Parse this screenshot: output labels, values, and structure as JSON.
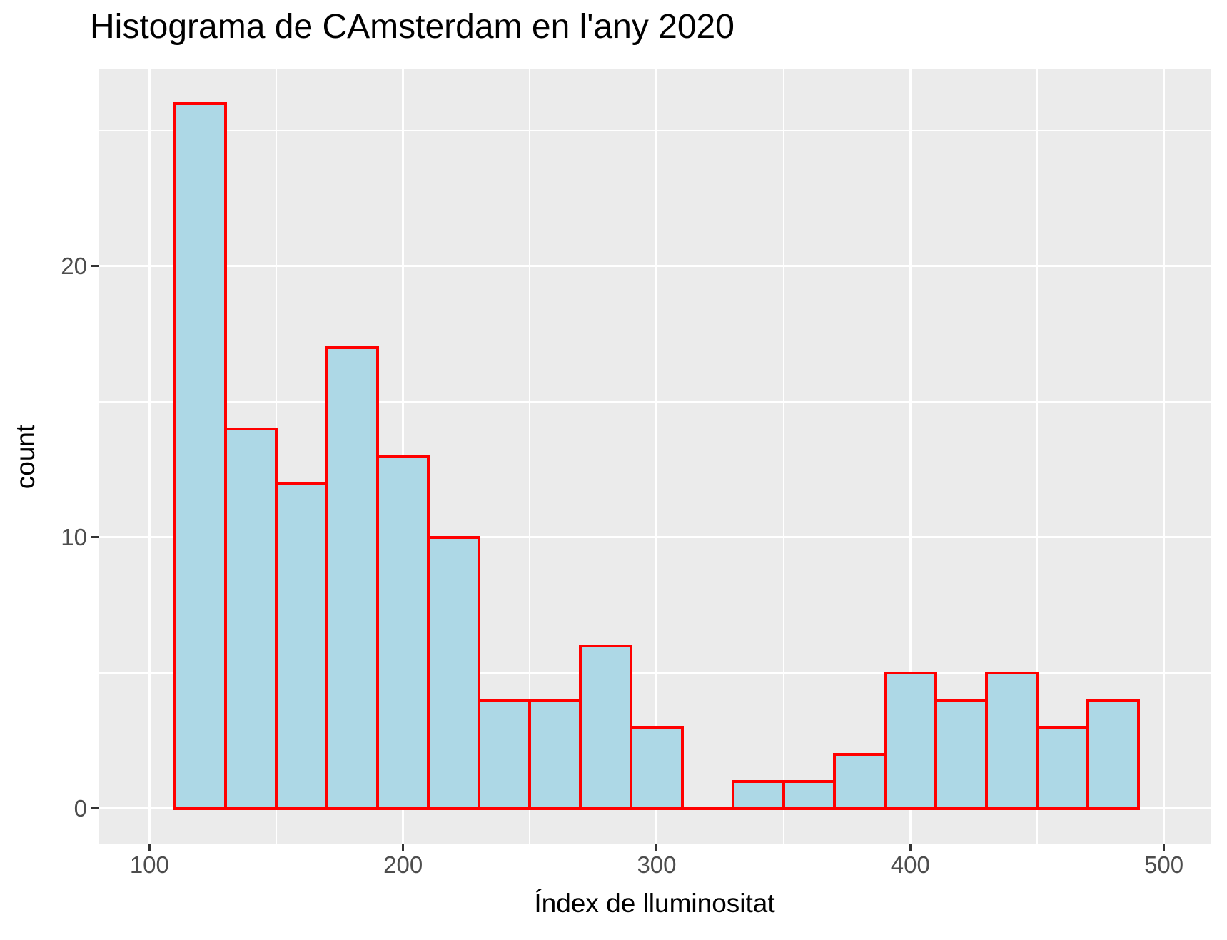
{
  "chart_data": {
    "type": "bar",
    "subtype": "histogram",
    "title": "Histograma de CAmsterdam en l'any 2020",
    "xlabel": "Índex de lluminositat",
    "ylabel": "count",
    "bins": [
      {
        "from": 110,
        "to": 130,
        "count": 26
      },
      {
        "from": 130,
        "to": 150,
        "count": 14
      },
      {
        "from": 150,
        "to": 170,
        "count": 12
      },
      {
        "from": 170,
        "to": 190,
        "count": 17
      },
      {
        "from": 190,
        "to": 210,
        "count": 13
      },
      {
        "from": 210,
        "to": 230,
        "count": 10
      },
      {
        "from": 230,
        "to": 250,
        "count": 4
      },
      {
        "from": 250,
        "to": 270,
        "count": 4
      },
      {
        "from": 270,
        "to": 290,
        "count": 6
      },
      {
        "from": 290,
        "to": 310,
        "count": 3
      },
      {
        "from": 310,
        "to": 330,
        "count": 0
      },
      {
        "from": 330,
        "to": 350,
        "count": 1
      },
      {
        "from": 350,
        "to": 370,
        "count": 1
      },
      {
        "from": 370,
        "to": 390,
        "count": 2
      },
      {
        "from": 390,
        "to": 410,
        "count": 5
      },
      {
        "from": 410,
        "to": 430,
        "count": 4
      },
      {
        "from": 430,
        "to": 450,
        "count": 5
      },
      {
        "from": 450,
        "to": 470,
        "count": 3
      },
      {
        "from": 470,
        "to": 490,
        "count": 4
      }
    ],
    "x_ticks": [
      100,
      200,
      300,
      400,
      500
    ],
    "x_tick_labels": [
      "100",
      "200",
      "300",
      "400",
      "500"
    ],
    "y_ticks": [
      0,
      10,
      20
    ],
    "y_tick_labels": [
      "0",
      "10",
      "20"
    ],
    "x_minor_ticks": [
      150,
      250,
      350,
      450
    ],
    "y_minor_ticks": [
      5,
      15,
      25
    ],
    "xlim": [
      80.2,
      518.4
    ],
    "ylim": [
      -1.32,
      27.26
    ],
    "grid": true,
    "legend_position": "none",
    "colors": {
      "bar_fill": "#ADD8E6",
      "bar_edge": "#FF0000",
      "panel_bg": "#EBEBEB",
      "gridline": "#FFFFFF",
      "tick_label": "#4D4D4D",
      "tick_mark": "#333333",
      "axis_title": "#000000",
      "title": "#000000",
      "background": "#FFFFFF"
    }
  }
}
